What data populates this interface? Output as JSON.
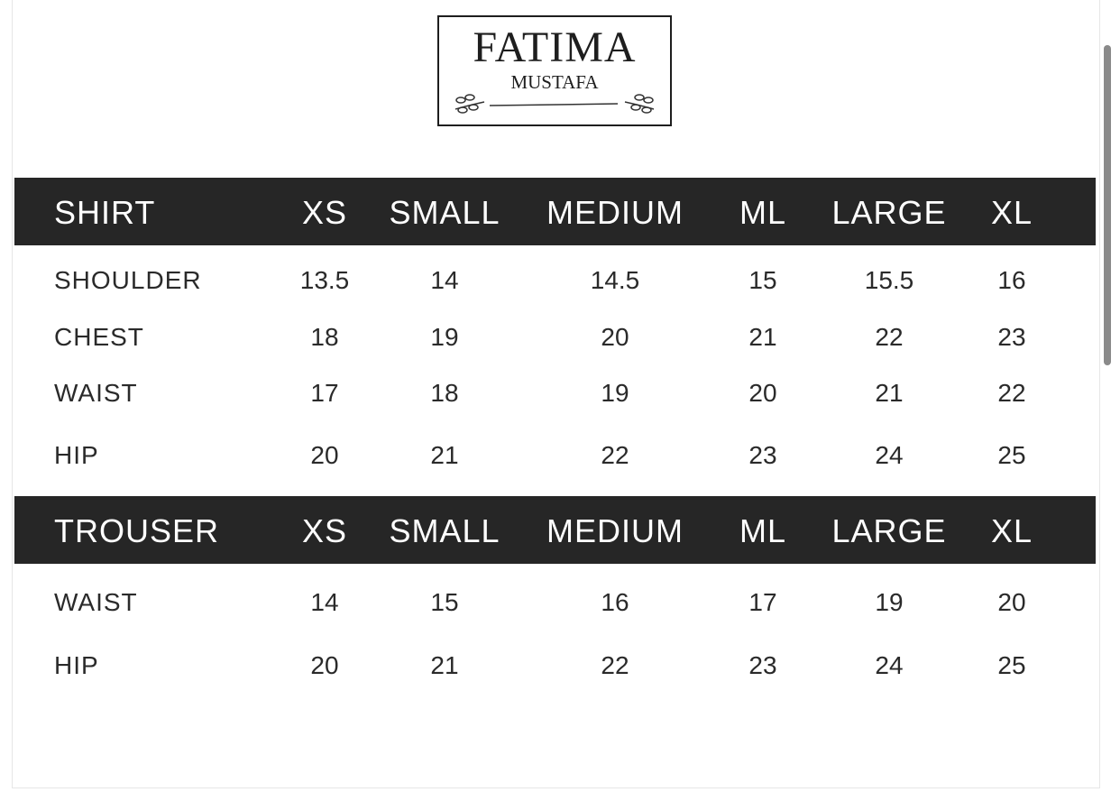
{
  "logo": {
    "line1": "FATIMA",
    "line2": "MUSTAFA"
  },
  "columns": [
    "XS",
    "SMALL",
    "MEDIUM",
    "ML",
    "LARGE",
    "XL"
  ],
  "tables": [
    {
      "title": "SHIRT",
      "rows": [
        {
          "label": "SHOULDER",
          "values": [
            "13.5",
            "14",
            "14.5",
            "15",
            "15.5",
            "16"
          ]
        },
        {
          "label": "CHEST",
          "values": [
            "18",
            "19",
            "20",
            "21",
            "22",
            "23"
          ]
        },
        {
          "label": "WAIST",
          "values": [
            "17",
            "18",
            "19",
            "20",
            "21",
            "22"
          ]
        },
        {
          "label": "HIP",
          "values": [
            "20",
            "21",
            "22",
            "23",
            "24",
            "25"
          ]
        }
      ]
    },
    {
      "title": "TROUSER",
      "rows": [
        {
          "label": "WAIST",
          "values": [
            "14",
            "15",
            "16",
            "17",
            "19",
            "20"
          ]
        },
        {
          "label": "HIP",
          "values": [
            "20",
            "21",
            "22",
            "23",
            "24",
            "25"
          ]
        }
      ]
    }
  ],
  "colors": {
    "header_bg": "#262626",
    "header_text": "#ffffff",
    "body_text": "#2a2a2a"
  }
}
